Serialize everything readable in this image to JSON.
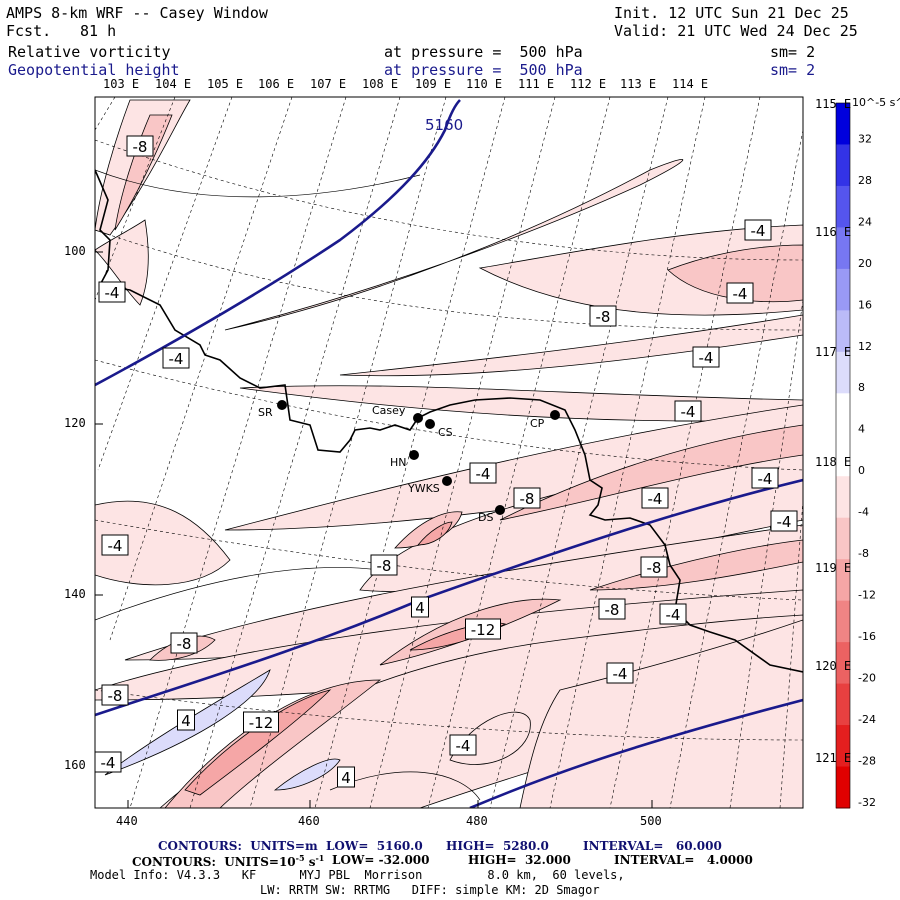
{
  "header": {
    "title": "AMPS 8-km WRF -- Casey Window",
    "fcst_label": "Fcst.",
    "fcst_value": "81 h",
    "init": "Init. 12 UTC Sun 21 Dec 25",
    "valid": "Valid: 21 UTC Wed 24 Dec 25",
    "field1": {
      "name": "Relative vorticity",
      "level": "at pressure =  500 hPa",
      "sm": "sm= 2"
    },
    "field2": {
      "name": "Geopotential height",
      "level": "at pressure =  500 hPa",
      "sm": "sm= 2"
    }
  },
  "top_lon_labels": [
    "103 E",
    "104 E",
    "105 E",
    "106 E",
    "107 E",
    "108 E",
    "109 E",
    "110 E",
    "111 E",
    "112 E",
    "113 E",
    "114 E"
  ],
  "right_lon_labels": [
    "115 E",
    "116 E",
    "117 E",
    "118 E",
    "119 E",
    "120 E",
    "121 E"
  ],
  "x_axis": [
    "440",
    "460",
    "480",
    "500"
  ],
  "y_axis": [
    "100",
    "120",
    "140",
    "160"
  ],
  "stations": [
    {
      "name": "SR"
    },
    {
      "name": "Casey"
    },
    {
      "name": "CS"
    },
    {
      "name": "CP"
    },
    {
      "name": "HN"
    },
    {
      "name": "YWKS"
    },
    {
      "name": "DS"
    }
  ],
  "height_label": "5160",
  "vorticity_labels": [
    "-8",
    "-4",
    "-4",
    "-4",
    "-8",
    "-4",
    "-4",
    "-4",
    "-4",
    "-8",
    "-4",
    "-4",
    "-4",
    "-4",
    "-8",
    "4",
    "-8",
    "-8",
    "-12",
    "-4",
    "-8",
    "-4",
    "-8",
    "-12",
    "-4",
    "-4",
    "4",
    "4"
  ],
  "colorbar": {
    "unit": "10^-5 s^-1",
    "ticks": [
      "32",
      "28",
      "24",
      "20",
      "16",
      "12",
      "8",
      "4",
      "0",
      "-4",
      "-8",
      "-12",
      "-16",
      "-20",
      "-24",
      "-28",
      "-32"
    ],
    "colors": [
      "#0000dd",
      "#3333e6",
      "#5555ee",
      "#7777f2",
      "#9999f5",
      "#bbbbf8",
      "#dcdcfb",
      "#ffffff",
      "#ffffff",
      "#fde4e4",
      "#f9c6c6",
      "#f5a6a6",
      "#f08484",
      "#ec6262",
      "#e84040",
      "#e41f1f",
      "#e00000"
    ]
  },
  "footer": {
    "line1_a": "CONTOURS:  UNITS=m  LOW=  5160.0",
    "line1_b": "HIGH=  5280.0",
    "line1_c": "INTERVAL=   60.000",
    "line2_a": "CONTOURS:  UNITS=10",
    "line2_b": "s",
    "line2_c": "LOW= -32.000",
    "line2_d": "HIGH=  32.000",
    "line2_e": "INTERVAL=   4.0000",
    "line3": "Model Info: V4.3.3   KF      MYJ PBL  Morrison         8.0 km,  60 levels,",
    "line4": "LW: RRTM SW: RRTMG   DIFF: simple KM: 2D Smagor"
  }
}
